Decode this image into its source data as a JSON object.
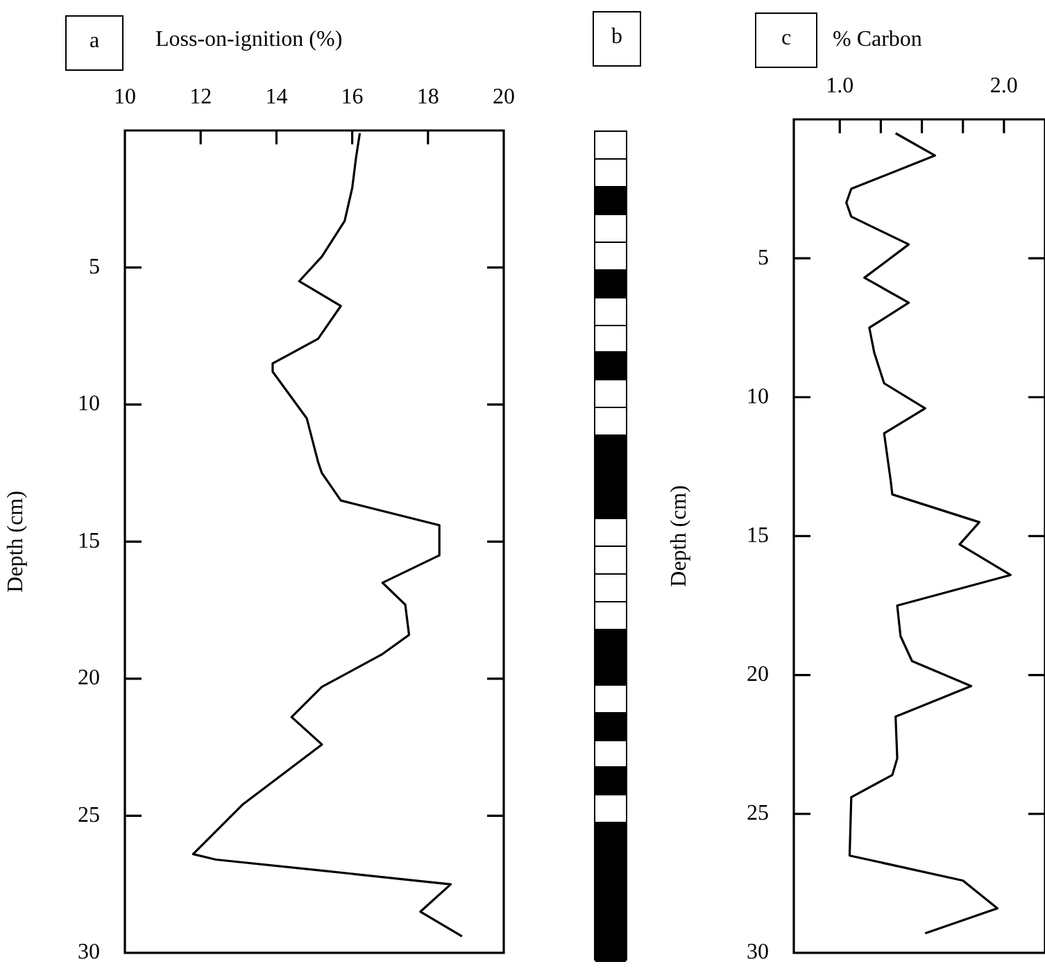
{
  "chart_data": [
    {
      "type": "line",
      "title": "a",
      "xlabel": "Loss-on-ignition (%)",
      "ylabel": "Depth (cm)",
      "xlim": [
        10,
        20
      ],
      "xticks": [
        10,
        12,
        14,
        16,
        18,
        20
      ],
      "ylim": [
        30,
        0
      ],
      "yticks": [
        5,
        10,
        15,
        20,
        25,
        30
      ],
      "series": [
        {
          "color": "#000000",
          "x": [
            16.2,
            16.1,
            16.0,
            15.8,
            15.2,
            14.6,
            15.7,
            15.1,
            13.9,
            13.9,
            14.8,
            15.1,
            15.2,
            15.7,
            18.3,
            18.3,
            16.8,
            17.4,
            17.5,
            16.8,
            15.2,
            14.4,
            15.2,
            13.1,
            11.8,
            12.4,
            15.2,
            17.9,
            18.6,
            17.8,
            18.9
          ],
          "values": [
            0.1,
            1.0,
            2.1,
            3.3,
            4.6,
            5.5,
            6.4,
            7.6,
            8.5,
            8.8,
            10.5,
            12.1,
            12.5,
            13.5,
            14.4,
            15.5,
            16.5,
            17.3,
            18.4,
            19.1,
            20.3,
            21.4,
            22.4,
            24.6,
            26.4,
            26.6,
            27.0,
            27.4,
            27.5,
            28.5,
            29.4
          ]
        }
      ]
    },
    {
      "type": "other",
      "title": "b"
    },
    {
      "type": "line",
      "title": "c",
      "xlabel": "% Carbon",
      "ylabel": "Depth (cm)",
      "xlim": [
        0.72,
        2.25
      ],
      "xticks": [
        {
          "value": 1,
          "label": "1.0"
        },
        {
          "value": 1.25,
          "label": null
        },
        {
          "value": 1.5,
          "label": null
        },
        {
          "value": 1.75,
          "label": null
        },
        {
          "value": 2,
          "label": "2.0"
        }
      ],
      "ylim": [
        30,
        0
      ],
      "yticks": [
        5,
        10,
        15,
        20,
        25,
        30
      ],
      "series": [
        {
          "color": "#000000",
          "x": [
            1.34,
            1.58,
            1.07,
            1.04,
            1.07,
            1.42,
            1.15,
            1.42,
            1.18,
            1.21,
            1.27,
            1.52,
            1.27,
            1.31,
            1.32,
            1.85,
            1.73,
            2.04,
            1.35,
            1.37,
            1.44,
            1.8,
            1.34,
            1.35,
            1.32,
            1.07,
            1.06,
            1.75,
            1.96,
            1.52
          ],
          "values": [
            0.5,
            1.3,
            2.5,
            3.0,
            3.5,
            4.5,
            5.7,
            6.6,
            7.5,
            8.4,
            9.5,
            10.4,
            11.3,
            13.0,
            13.5,
            14.5,
            15.3,
            16.4,
            17.5,
            18.6,
            19.5,
            20.4,
            21.5,
            23.0,
            23.6,
            24.4,
            26.5,
            27.4,
            28.4,
            29.3
          ]
        }
      ]
    }
  ]
}
